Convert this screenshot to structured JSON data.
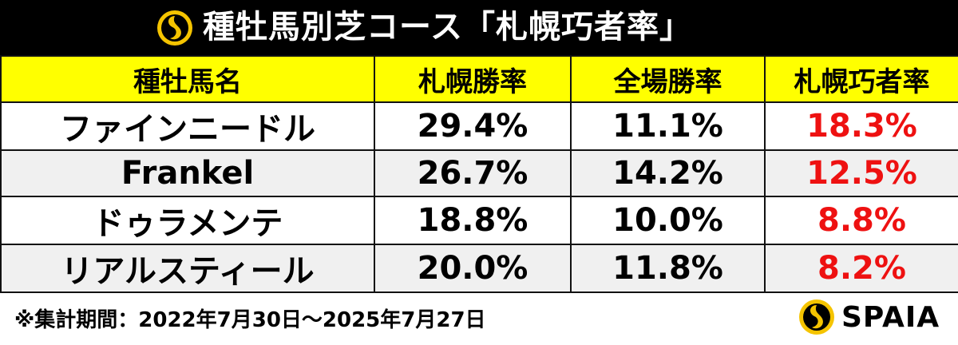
{
  "title": "種牡馬別芝コース「札幌巧者率」",
  "columns": [
    "種牡馬名",
    "札幌勝率",
    "全場勝率",
    "札幌巧者率"
  ],
  "rows": [
    {
      "name": "ファインニードル",
      "sapporo": "29.4%",
      "all": "11.1%",
      "ratio": "18.3%"
    },
    {
      "name": "Frankel",
      "sapporo": "26.7%",
      "all": "14.2%",
      "ratio": "12.5%"
    },
    {
      "name": "ドゥラメンテ",
      "sapporo": "18.8%",
      "all": "10.0%",
      "ratio": "8.8%"
    },
    {
      "name": "リアルスティール",
      "sapporo": "20.0%",
      "all": "11.8%",
      "ratio": "8.2%"
    }
  ],
  "footnote": "※集計期間：2022年7月30日～2025年7月27日",
  "brand": "SPAIA",
  "colors": {
    "header_bg": "#000000",
    "column_header_bg": "#ffff00",
    "highlight_text": "#ee1111",
    "logo_gold": "#f5c400"
  },
  "icons": {
    "title_logo": "spaia-logo-icon",
    "brand_logo": "spaia-logo-icon"
  }
}
